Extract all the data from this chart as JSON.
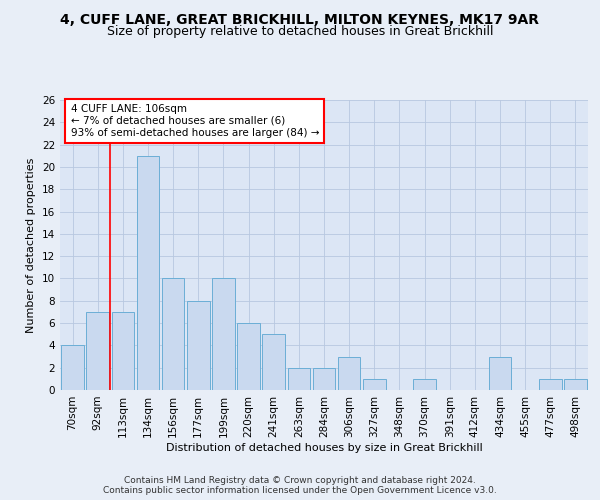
{
  "title1": "4, CUFF LANE, GREAT BRICKHILL, MILTON KEYNES, MK17 9AR",
  "title2": "Size of property relative to detached houses in Great Brickhill",
  "xlabel": "Distribution of detached houses by size in Great Brickhill",
  "ylabel": "Number of detached properties",
  "bar_labels": [
    "70sqm",
    "92sqm",
    "113sqm",
    "134sqm",
    "156sqm",
    "177sqm",
    "199sqm",
    "220sqm",
    "241sqm",
    "263sqm",
    "284sqm",
    "306sqm",
    "327sqm",
    "348sqm",
    "370sqm",
    "391sqm",
    "412sqm",
    "434sqm",
    "455sqm",
    "477sqm",
    "498sqm"
  ],
  "bar_values": [
    4,
    7,
    7,
    21,
    10,
    8,
    10,
    6,
    5,
    2,
    2,
    3,
    1,
    0,
    1,
    0,
    0,
    3,
    0,
    1,
    1
  ],
  "bar_color": "#c9d9ef",
  "bar_edge_color": "#6baed6",
  "annotation_text": "4 CUFF LANE: 106sqm\n← 7% of detached houses are smaller (6)\n93% of semi-detached houses are larger (84) →",
  "annotation_box_color": "white",
  "annotation_box_edge": "red",
  "vline_x": 1.5,
  "vline_color": "red",
  "ylim": [
    0,
    26
  ],
  "yticks": [
    0,
    2,
    4,
    6,
    8,
    10,
    12,
    14,
    16,
    18,
    20,
    22,
    24,
    26
  ],
  "footer1": "Contains HM Land Registry data © Crown copyright and database right 2024.",
  "footer2": "Contains public sector information licensed under the Open Government Licence v3.0.",
  "bg_color": "#e8eef7",
  "plot_bg_color": "#dce6f5",
  "grid_color": "#b8c8e0",
  "title1_fontsize": 10,
  "title2_fontsize": 9,
  "axis_label_fontsize": 8,
  "tick_fontsize": 7.5,
  "footer_fontsize": 6.5,
  "ann_fontsize": 7.5
}
